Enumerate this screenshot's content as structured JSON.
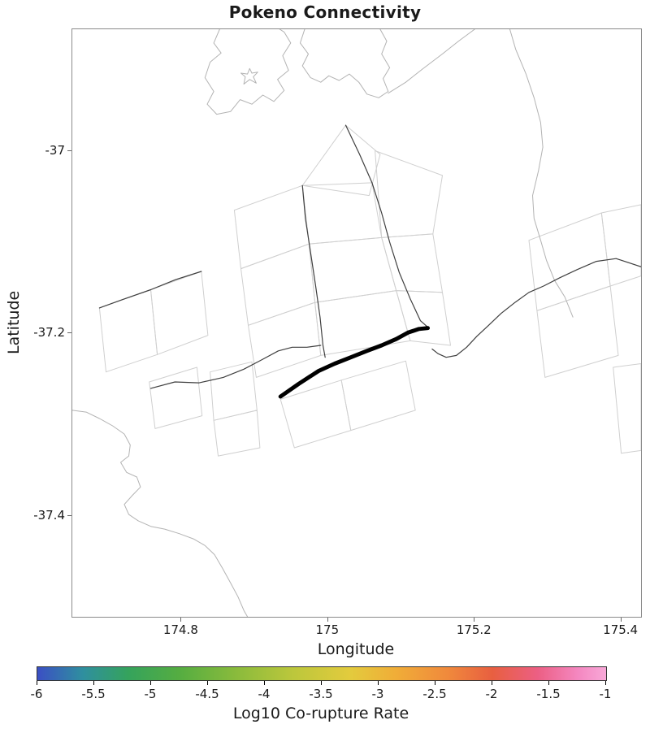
{
  "chart_data": {
    "type": "map",
    "title": "Pokeno Connectivity",
    "xlabel": "Longitude",
    "ylabel": "Latitude",
    "xlim": [
      174.651,
      175.427
    ],
    "ylim": [
      -37.51,
      -36.867
    ],
    "xticks": [
      174.8,
      175.0,
      175.2,
      175.4
    ],
    "xtick_labels": [
      "174.8",
      "175",
      "175.2",
      "175.4"
    ],
    "yticks": [
      -37.0,
      -37.2,
      -37.4
    ],
    "ytick_labels": [
      "-37",
      "-37.2",
      "-37.4"
    ],
    "grid": false,
    "styles": {
      "coastline_color": "#b3b3b3",
      "fault_polygon_color": "#cfcfcf",
      "fault_trace_color": "#3f3f3f",
      "highlight_color": "#000000",
      "axis_text_color": "#1a1a1a"
    },
    "colorbar": {
      "label": "Log10 Co-rupture Rate",
      "min": -6,
      "max": -1,
      "ticks": [
        -6,
        -5.5,
        -5,
        -4.5,
        -4,
        -3.5,
        -3,
        -2.5,
        -2,
        -1.5,
        -1
      ],
      "tick_labels": [
        "-6",
        "-5.5",
        "-5",
        "-4.5",
        "-4",
        "-3.5",
        "-3",
        "-2.5",
        "-2",
        "-1.5",
        "-1"
      ],
      "stops": [
        {
          "pos": 0.0,
          "color": "#3b4fc4"
        },
        {
          "pos": 0.08,
          "color": "#2f8f9f"
        },
        {
          "pos": 0.16,
          "color": "#35a35c"
        },
        {
          "pos": 0.25,
          "color": "#55ad41"
        },
        {
          "pos": 0.35,
          "color": "#8abb3c"
        },
        {
          "pos": 0.45,
          "color": "#bcc73c"
        },
        {
          "pos": 0.55,
          "color": "#e3cb3d"
        },
        {
          "pos": 0.63,
          "color": "#f0ad38"
        },
        {
          "pos": 0.72,
          "color": "#f08a3c"
        },
        {
          "pos": 0.8,
          "color": "#e85f40"
        },
        {
          "pos": 0.88,
          "color": "#ec5f84"
        },
        {
          "pos": 0.95,
          "color": "#f487c0"
        },
        {
          "pos": 1.0,
          "color": "#f8a8d8"
        }
      ]
    },
    "highlighted_fault": {
      "name": "Pokeno",
      "points": [
        [
          174.935,
          -37.269
        ],
        [
          174.96,
          -37.255
        ],
        [
          174.987,
          -37.241
        ],
        [
          175.009,
          -37.233
        ],
        [
          175.031,
          -37.226
        ],
        [
          175.053,
          -37.219
        ],
        [
          175.073,
          -37.213
        ],
        [
          175.093,
          -37.206
        ],
        [
          175.109,
          -37.199
        ],
        [
          175.124,
          -37.195
        ],
        [
          175.136,
          -37.194
        ]
      ]
    },
    "map_layers": {
      "coastlines": [
        {
          "closed": false,
          "points": [
            [
              174.852,
              -36.867
            ],
            [
              174.844,
              -36.882
            ],
            [
              174.854,
              -36.893
            ],
            [
              174.839,
              -36.903
            ],
            [
              174.832,
              -36.92
            ],
            [
              174.844,
              -36.935
            ],
            [
              174.835,
              -36.949
            ],
            [
              174.848,
              -36.96
            ],
            [
              174.867,
              -36.957
            ],
            [
              174.88,
              -36.944
            ],
            [
              174.896,
              -36.949
            ],
            [
              174.911,
              -36.939
            ],
            [
              174.926,
              -36.946
            ],
            [
              174.94,
              -36.934
            ],
            [
              174.931,
              -36.922
            ],
            [
              174.946,
              -36.912
            ],
            [
              174.938,
              -36.896
            ],
            [
              174.949,
              -36.882
            ],
            [
              174.94,
              -36.87
            ],
            [
              174.934,
              -36.867
            ]
          ]
        },
        {
          "closed": true,
          "points": [
            [
              174.893,
              -36.91
            ],
            [
              174.896,
              -36.915
            ],
            [
              174.904,
              -36.914
            ],
            [
              174.898,
              -36.919
            ],
            [
              174.902,
              -36.926
            ],
            [
              174.893,
              -36.922
            ],
            [
              174.885,
              -36.927
            ],
            [
              174.887,
              -36.919
            ],
            [
              174.881,
              -36.915
            ],
            [
              174.89,
              -36.916
            ]
          ]
        },
        {
          "closed": false,
          "points": [
            [
              174.968,
              -36.867
            ],
            [
              174.962,
              -36.882
            ],
            [
              174.973,
              -36.894
            ],
            [
              174.965,
              -36.907
            ],
            [
              174.976,
              -36.92
            ],
            [
              174.99,
              -36.925
            ],
            [
              175.001,
              -36.918
            ],
            [
              175.015,
              -36.923
            ],
            [
              175.029,
              -36.916
            ],
            [
              175.042,
              -36.925
            ],
            [
              175.053,
              -36.938
            ],
            [
              175.069,
              -36.942
            ],
            [
              175.082,
              -36.935
            ],
            [
              175.075,
              -36.921
            ],
            [
              175.084,
              -36.909
            ],
            [
              175.073,
              -36.894
            ],
            [
              175.08,
              -36.88
            ],
            [
              175.071,
              -36.867
            ]
          ]
        },
        {
          "closed": false,
          "points": [
            [
              175.082,
              -36.937
            ],
            [
              175.106,
              -36.925
            ],
            [
              175.128,
              -36.911
            ],
            [
              175.156,
              -36.894
            ],
            [
              175.178,
              -36.88
            ],
            [
              175.2,
              -36.867
            ]
          ]
        },
        {
          "closed": false,
          "points": [
            [
              175.248,
              -36.867
            ],
            [
              175.256,
              -36.889
            ],
            [
              175.27,
              -36.916
            ],
            [
              175.281,
              -36.942
            ],
            [
              175.29,
              -36.969
            ],
            [
              175.293,
              -36.996
            ],
            [
              175.287,
              -37.022
            ],
            [
              175.279,
              -37.049
            ],
            [
              175.281,
              -37.074
            ],
            [
              175.29,
              -37.098
            ],
            [
              175.298,
              -37.12
            ],
            [
              175.309,
              -37.142
            ],
            [
              175.323,
              -37.16
            ],
            [
              175.334,
              -37.182
            ]
          ]
        },
        {
          "closed": false,
          "points": [
            [
              174.651,
              -37.284
            ],
            [
              174.67,
              -37.286
            ],
            [
              174.688,
              -37.293
            ],
            [
              174.706,
              -37.301
            ],
            [
              174.722,
              -37.31
            ],
            [
              174.73,
              -37.322
            ],
            [
              174.728,
              -37.334
            ],
            [
              174.717,
              -37.341
            ],
            [
              174.725,
              -37.352
            ],
            [
              174.739,
              -37.357
            ],
            [
              174.744,
              -37.368
            ],
            [
              174.733,
              -37.377
            ],
            [
              174.722,
              -37.387
            ],
            [
              174.728,
              -37.398
            ],
            [
              174.741,
              -37.405
            ],
            [
              174.758,
              -37.411
            ],
            [
              174.777,
              -37.414
            ],
            [
              174.797,
              -37.419
            ],
            [
              174.817,
              -37.425
            ],
            [
              174.832,
              -37.432
            ],
            [
              174.845,
              -37.442
            ],
            [
              174.856,
              -37.457
            ],
            [
              174.867,
              -37.473
            ],
            [
              174.877,
              -37.488
            ],
            [
              174.885,
              -37.503
            ],
            [
              174.89,
              -37.51
            ]
          ]
        }
      ],
      "fault_polygons": [
        [
          [
            174.688,
            -37.172
          ],
          [
            174.758,
            -37.152
          ],
          [
            174.767,
            -37.223
          ],
          [
            174.697,
            -37.242
          ]
        ],
        [
          [
            174.758,
            -37.152
          ],
          [
            174.827,
            -37.132
          ],
          [
            174.836,
            -37.202
          ],
          [
            174.767,
            -37.223
          ]
        ],
        [
          [
            174.756,
            -37.253
          ],
          [
            174.821,
            -37.237
          ],
          [
            174.828,
            -37.29
          ],
          [
            174.764,
            -37.304
          ]
        ],
        [
          [
            174.839,
            -37.242
          ],
          [
            174.896,
            -37.231
          ],
          [
            174.903,
            -37.284
          ],
          [
            174.844,
            -37.295
          ]
        ],
        [
          [
            174.844,
            -37.295
          ],
          [
            174.903,
            -37.284
          ],
          [
            174.907,
            -37.325
          ],
          [
            174.85,
            -37.334
          ]
        ],
        [
          [
            174.872,
            -37.065
          ],
          [
            174.965,
            -37.038
          ],
          [
            174.974,
            -37.102
          ],
          [
            174.881,
            -37.129
          ]
        ],
        [
          [
            174.881,
            -37.129
          ],
          [
            174.974,
            -37.102
          ],
          [
            174.982,
            -37.166
          ],
          [
            174.891,
            -37.191
          ]
        ],
        [
          [
            174.891,
            -37.191
          ],
          [
            174.982,
            -37.166
          ],
          [
            174.99,
            -37.224
          ],
          [
            174.902,
            -37.248
          ]
        ],
        [
          [
            174.965,
            -37.038
          ],
          [
            175.06,
            -37.035
          ],
          [
            175.073,
            -37.095
          ],
          [
            174.974,
            -37.102
          ]
        ],
        [
          [
            174.974,
            -37.102
          ],
          [
            175.073,
            -37.095
          ],
          [
            175.093,
            -37.153
          ],
          [
            174.982,
            -37.166
          ]
        ],
        [
          [
            174.982,
            -37.166
          ],
          [
            175.093,
            -37.153
          ],
          [
            175.112,
            -37.208
          ],
          [
            174.99,
            -37.224
          ]
        ],
        [
          [
            174.965,
            -37.038
          ],
          [
            175.024,
            -36.972
          ],
          [
            175.071,
            -37.004
          ],
          [
            175.056,
            -37.049
          ]
        ],
        [
          [
            175.064,
            -37.0
          ],
          [
            175.156,
            -37.027
          ],
          [
            175.143,
            -37.091
          ],
          [
            175.073,
            -37.095
          ]
        ],
        [
          [
            175.073,
            -37.095
          ],
          [
            175.143,
            -37.091
          ],
          [
            175.156,
            -37.155
          ],
          [
            175.093,
            -37.153
          ]
        ],
        [
          [
            175.093,
            -37.153
          ],
          [
            175.156,
            -37.155
          ],
          [
            175.167,
            -37.213
          ],
          [
            175.112,
            -37.208
          ]
        ],
        [
          [
            174.935,
            -37.272
          ],
          [
            175.018,
            -37.251
          ],
          [
            175.031,
            -37.306
          ],
          [
            174.954,
            -37.325
          ]
        ],
        [
          [
            175.018,
            -37.251
          ],
          [
            175.106,
            -37.23
          ],
          [
            175.119,
            -37.284
          ],
          [
            175.031,
            -37.306
          ]
        ],
        [
          [
            175.274,
            -37.098
          ],
          [
            175.373,
            -37.068
          ],
          [
            175.385,
            -37.148
          ],
          [
            175.285,
            -37.175
          ]
        ],
        [
          [
            175.373,
            -37.068
          ],
          [
            175.427,
            -37.059
          ],
          [
            175.427,
            -37.137
          ],
          [
            175.385,
            -37.148
          ]
        ],
        [
          [
            175.285,
            -37.175
          ],
          [
            175.385,
            -37.148
          ],
          [
            175.396,
            -37.224
          ],
          [
            175.296,
            -37.248
          ]
        ],
        [
          [
            175.389,
            -37.237
          ],
          [
            175.427,
            -37.233
          ],
          [
            175.427,
            -37.328
          ],
          [
            175.4,
            -37.331
          ]
        ]
      ],
      "fault_traces": [
        [
          [
            174.688,
            -37.172
          ],
          [
            174.719,
            -37.163
          ],
          [
            174.758,
            -37.152
          ],
          [
            174.792,
            -37.141
          ],
          [
            174.827,
            -37.132
          ]
        ],
        [
          [
            174.965,
            -37.038
          ],
          [
            174.969,
            -37.074
          ],
          [
            174.976,
            -37.111
          ],
          [
            174.983,
            -37.148
          ],
          [
            174.989,
            -37.182
          ],
          [
            174.993,
            -37.213
          ],
          [
            174.996,
            -37.226
          ]
        ],
        [
          [
            175.024,
            -36.972
          ],
          [
            175.043,
            -37.004
          ],
          [
            175.06,
            -37.035
          ],
          [
            175.073,
            -37.068
          ],
          [
            175.084,
            -37.1
          ],
          [
            175.097,
            -37.133
          ],
          [
            175.112,
            -37.162
          ],
          [
            175.126,
            -37.186
          ],
          [
            175.136,
            -37.193
          ]
        ],
        [
          [
            174.758,
            -37.26
          ],
          [
            174.791,
            -37.253
          ],
          [
            174.824,
            -37.254
          ],
          [
            174.857,
            -37.248
          ],
          [
            174.885,
            -37.239
          ],
          [
            174.909,
            -37.229
          ],
          [
            174.932,
            -37.219
          ],
          [
            174.951,
            -37.215
          ],
          [
            174.971,
            -37.215
          ],
          [
            174.99,
            -37.213
          ]
        ],
        [
          [
            175.427,
            -37.127
          ],
          [
            175.393,
            -37.118
          ],
          [
            175.366,
            -37.121
          ],
          [
            175.34,
            -37.13
          ],
          [
            175.316,
            -37.139
          ],
          [
            175.294,
            -37.148
          ],
          [
            175.274,
            -37.155
          ],
          [
            175.255,
            -37.166
          ],
          [
            175.236,
            -37.178
          ],
          [
            175.219,
            -37.191
          ],
          [
            175.203,
            -37.203
          ],
          [
            175.189,
            -37.215
          ],
          [
            175.175,
            -37.224
          ],
          [
            175.161,
            -37.226
          ],
          [
            175.15,
            -37.222
          ],
          [
            175.142,
            -37.217
          ]
        ]
      ]
    }
  }
}
